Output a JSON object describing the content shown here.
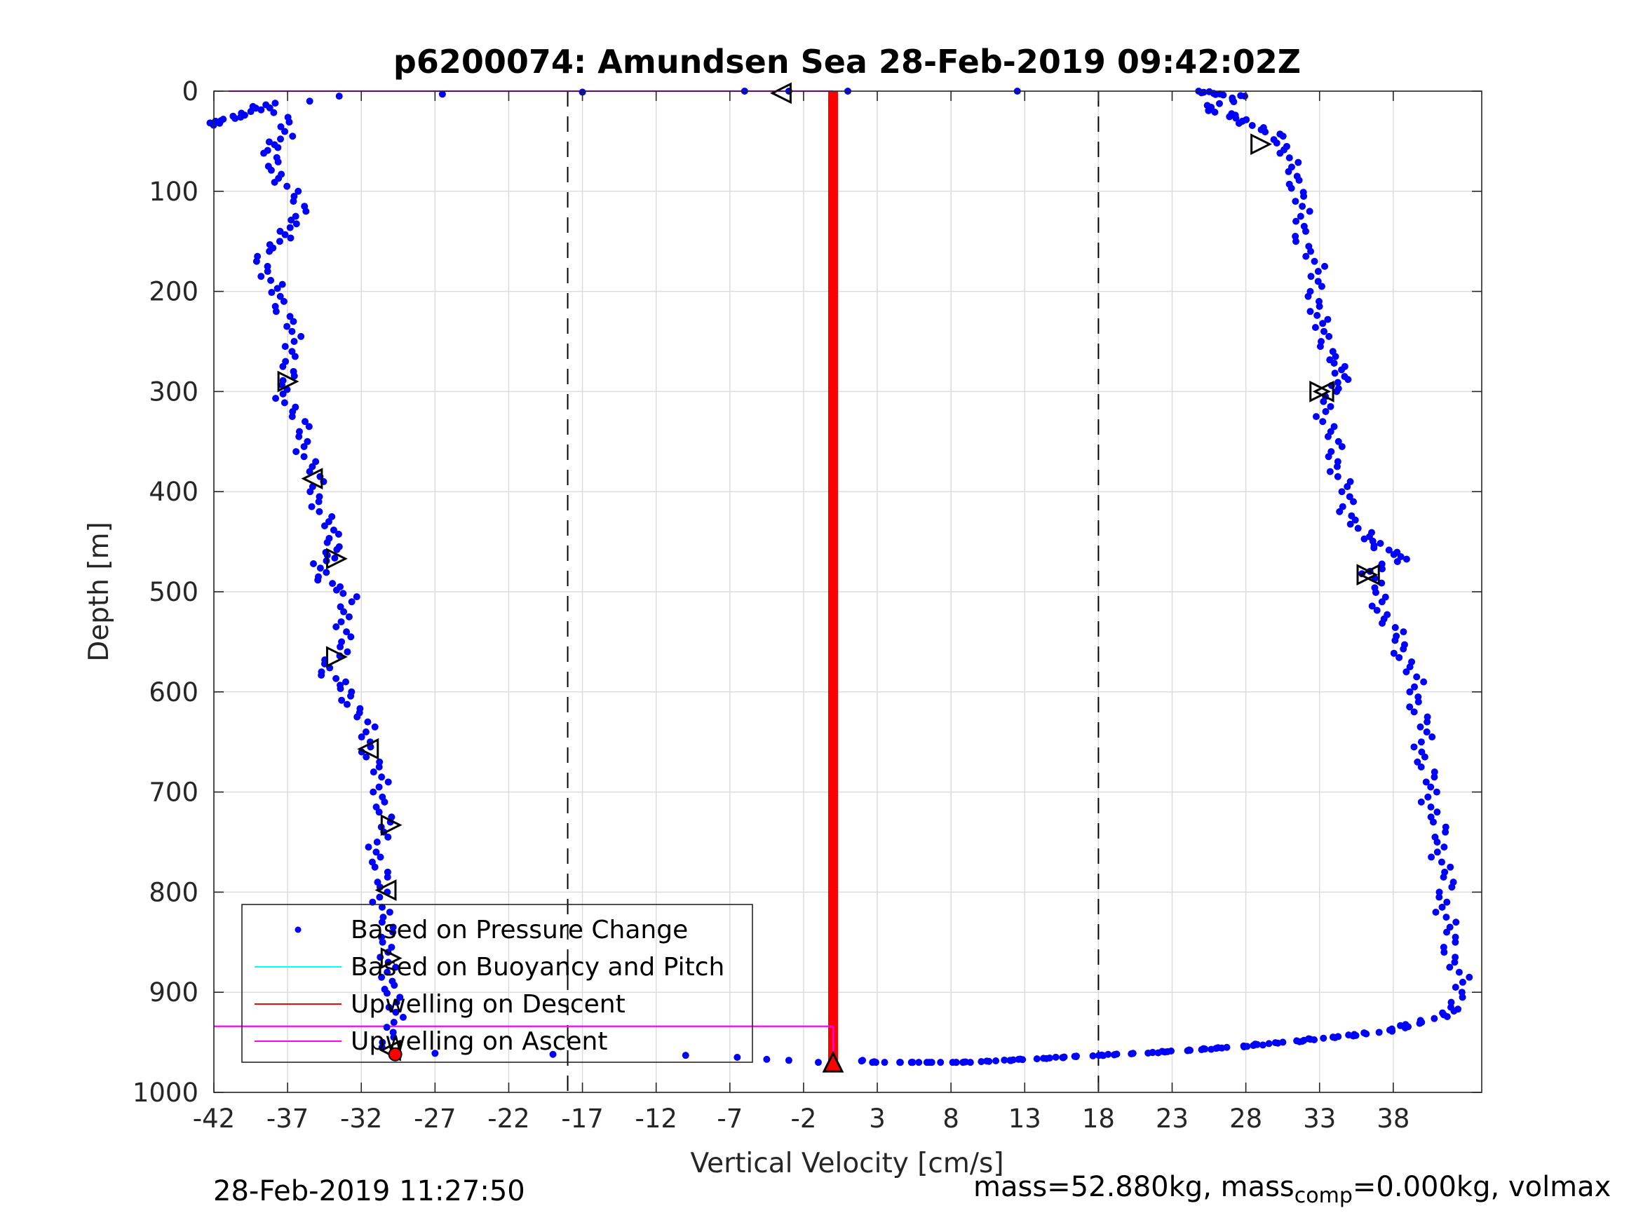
{
  "chart_data": {
    "type": "scatter",
    "title": "p6200074: Amundsen Sea 28-Feb-2019 09:42:02Z",
    "xlabel": "Vertical Velocity [cm/s]",
    "ylabel": "Depth [m]",
    "xlim": [
      -42,
      44
    ],
    "ylim": [
      1000,
      0
    ],
    "y_reversed": true,
    "xticks": [
      -42,
      -37,
      -32,
      -27,
      -22,
      -17,
      -12,
      -7,
      -2,
      3,
      8,
      13,
      18,
      23,
      28,
      33,
      38
    ],
    "yticks": [
      0,
      100,
      200,
      300,
      400,
      500,
      600,
      700,
      800,
      900,
      1000
    ],
    "grid": true,
    "legend_position": "bottom-left",
    "legend": [
      {
        "label": "Based on Pressure Change",
        "style": "dot",
        "color": "#0000ff"
      },
      {
        "label": "Based on Buoyancy and Pitch",
        "style": "line",
        "color": "#00ffff"
      },
      {
        "label": "Upwelling on Descent",
        "style": "line",
        "color": "#ff0000"
      },
      {
        "label": "Upwelling on Ascent",
        "style": "line",
        "color": "#ff00ff"
      }
    ],
    "reference_lines": {
      "dashed_x": [
        -18,
        18
      ],
      "color": "#000000"
    },
    "series": [
      {
        "name": "Based on Pressure Change",
        "kind": "dots",
        "color": "#0000ff",
        "descent_profile": [
          [
            -41,
            25
          ],
          [
            -42,
            34
          ],
          [
            -40,
            22
          ],
          [
            -38,
            12
          ],
          [
            -37,
            45
          ],
          [
            -38.5,
            62
          ],
          [
            -38,
            75
          ],
          [
            -37,
            95
          ],
          [
            -36.5,
            110
          ],
          [
            -36,
            125
          ],
          [
            -37,
            140
          ],
          [
            -38.5,
            160
          ],
          [
            -38.5,
            185
          ],
          [
            -37.5,
            205
          ],
          [
            -37,
            230
          ],
          [
            -36.5,
            260
          ],
          [
            -37,
            280
          ],
          [
            -37.5,
            298
          ],
          [
            -36.5,
            320
          ],
          [
            -36,
            345
          ],
          [
            -35.5,
            370
          ],
          [
            -35,
            400
          ],
          [
            -34.5,
            430
          ],
          [
            -33.5,
            455
          ],
          [
            -35,
            472
          ],
          [
            -34.5,
            485
          ],
          [
            -33,
            505
          ],
          [
            -33,
            530
          ],
          [
            -33.5,
            560
          ],
          [
            -34.5,
            580
          ],
          [
            -33,
            600
          ],
          [
            -32,
            625
          ],
          [
            -31.5,
            650
          ],
          [
            -31,
            680
          ],
          [
            -30.5,
            705
          ],
          [
            -30.5,
            735
          ],
          [
            -31,
            770
          ],
          [
            -30.5,
            800
          ],
          [
            -30.5,
            830
          ],
          [
            -30,
            860
          ],
          [
            -30.5,
            885
          ],
          [
            -29.5,
            905
          ],
          [
            -30,
            930
          ],
          [
            -30,
            955
          ],
          [
            -29.5,
            962
          ]
        ],
        "ascent_profile": [
          [
            24.5,
            0
          ],
          [
            27.5,
            5
          ],
          [
            25.5,
            18
          ],
          [
            28,
            30
          ],
          [
            30,
            45
          ],
          [
            31,
            62
          ],
          [
            31,
            85
          ],
          [
            32,
            105
          ],
          [
            31.5,
            125
          ],
          [
            32,
            150
          ],
          [
            32.5,
            170
          ],
          [
            33,
            195
          ],
          [
            32.5,
            220
          ],
          [
            33.5,
            240
          ],
          [
            33.5,
            265
          ],
          [
            35,
            285
          ],
          [
            33.5,
            300
          ],
          [
            33.5,
            330
          ],
          [
            34,
            360
          ],
          [
            34.5,
            390
          ],
          [
            35,
            420
          ],
          [
            36,
            445
          ],
          [
            38.5,
            465
          ],
          [
            36.5,
            482
          ],
          [
            37,
            510
          ],
          [
            38,
            540
          ],
          [
            39,
            570
          ],
          [
            39.5,
            600
          ],
          [
            40,
            630
          ],
          [
            40,
            660
          ],
          [
            40.5,
            700
          ],
          [
            41,
            740
          ],
          [
            41.5,
            780
          ],
          [
            41.5,
            820
          ],
          [
            42,
            860
          ],
          [
            42.5,
            890
          ],
          [
            42.5,
            915
          ],
          [
            40,
            930
          ],
          [
            37,
            940
          ],
          [
            32,
            948
          ],
          [
            27,
            955
          ],
          [
            22,
            960
          ],
          [
            18,
            963
          ],
          [
            13,
            967
          ],
          [
            9,
            970
          ],
          [
            3,
            970
          ],
          [
            2,
            968
          ]
        ],
        "surface_scatter": [
          [
            -35.5,
            10
          ],
          [
            -33.5,
            5
          ],
          [
            -26.5,
            3
          ],
          [
            -17,
            1
          ],
          [
            -6,
            0
          ],
          [
            -3,
            0
          ],
          [
            1,
            0
          ],
          [
            12.5,
            0
          ]
        ],
        "bottom_scatter": [
          [
            -27,
            961
          ],
          [
            -19,
            962
          ],
          [
            -10,
            963
          ],
          [
            -6.5,
            965
          ],
          [
            -4.5,
            967
          ],
          [
            -3,
            968
          ],
          [
            -1,
            970
          ]
        ]
      },
      {
        "name": "Upwelling on Descent",
        "kind": "vertical_band",
        "color": "#ff0000",
        "x": 0,
        "y_range": [
          0,
          970
        ]
      },
      {
        "name": "Upwelling on Ascent",
        "kind": "lines",
        "color": "#ff00ff",
        "segments": [
          {
            "x": [
              -41,
              0
            ],
            "y": [
              0,
              0
            ]
          },
          {
            "x": [
              -42,
              0
            ],
            "y": [
              934,
              934
            ]
          },
          {
            "x": [
              0,
              0
            ],
            "y": [
              934,
              970
            ]
          }
        ]
      }
    ],
    "markers": {
      "right_triangles": [
        [
          -37,
          290
        ],
        [
          -33.7,
          467
        ],
        [
          -33.7,
          565
        ],
        [
          -30,
          733
        ],
        [
          -30,
          866
        ],
        [
          29,
          53
        ],
        [
          33,
          300
        ],
        [
          36.2,
          483
        ]
      ],
      "left_triangles": [
        [
          -3.5,
          2
        ],
        [
          -35.3,
          387
        ],
        [
          -31.5,
          657
        ],
        [
          -30.3,
          798
        ],
        [
          -30,
          958
        ],
        [
          33.3,
          300
        ],
        [
          36.4,
          483
        ]
      ],
      "up_triangles": [
        [
          0,
          970
        ]
      ],
      "red_marker": [
        -29.7,
        962
      ]
    }
  },
  "footer": {
    "left_timestamp": "28-Feb-2019 11:27:50",
    "mass_text": "mass=52.880kg, mass",
    "mass_sub": "comp",
    "mass_tail": "=0.000kg, volmax"
  }
}
